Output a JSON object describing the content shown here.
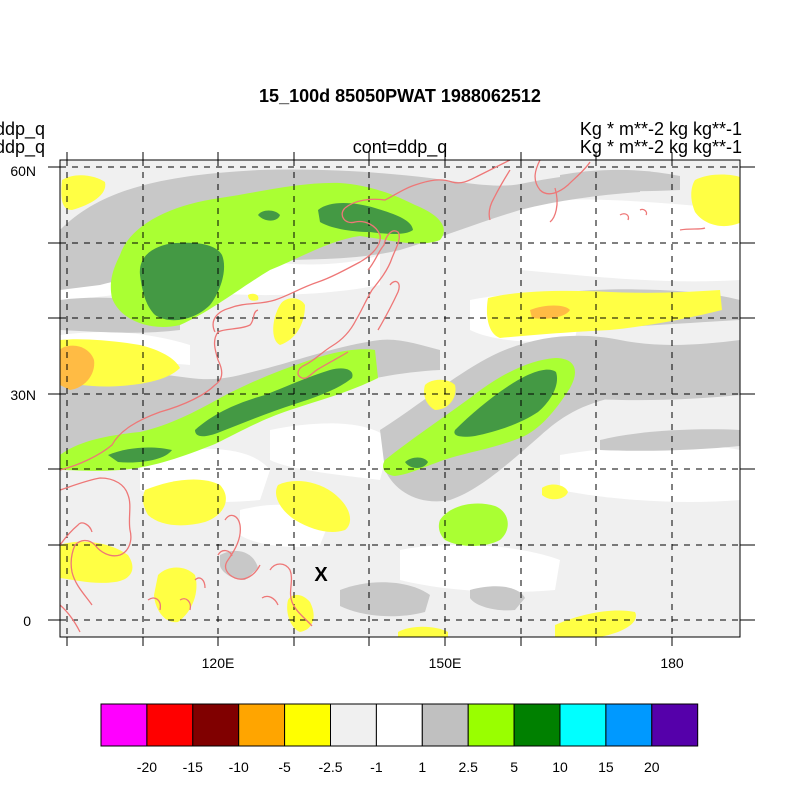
{
  "title": "15_100d 85050PWAT  1988062512",
  "left_labels": [
    "ddp_q",
    "ddp_q"
  ],
  "center_label": "cont=ddp_q",
  "right_labels": [
    "Kg  * m**-2 kg kg**-1",
    "Kg  * m**-2 kg kg**-1"
  ],
  "lat_ticks": [
    "60N",
    "30N",
    "0"
  ],
  "lon_ticks": [
    "120E",
    "150E",
    "180"
  ],
  "marker": "X",
  "colorbar": {
    "colors": [
      "#ff00ff",
      "#ff0000",
      "#800000",
      "#ffa500",
      "#ffff00",
      "#f0f0f0",
      "#ffffff",
      "#c0c0c0",
      "#99ff00",
      "#008000",
      "#00ffff",
      "#0099ff",
      "#5500aa"
    ],
    "labels": [
      "-20",
      "-15",
      "-10",
      "-5",
      "-2.5",
      "-1",
      "1",
      "2.5",
      "5",
      "10",
      "15",
      "20"
    ]
  },
  "palette": {
    "light_grey": "#ebebeb",
    "grey": "#c8c8c8",
    "light_green": "#aaff33",
    "dark_green": "#449944",
    "yellow": "#ffff44",
    "orange": "#ffbb44",
    "coast": "#ee7777"
  }
}
